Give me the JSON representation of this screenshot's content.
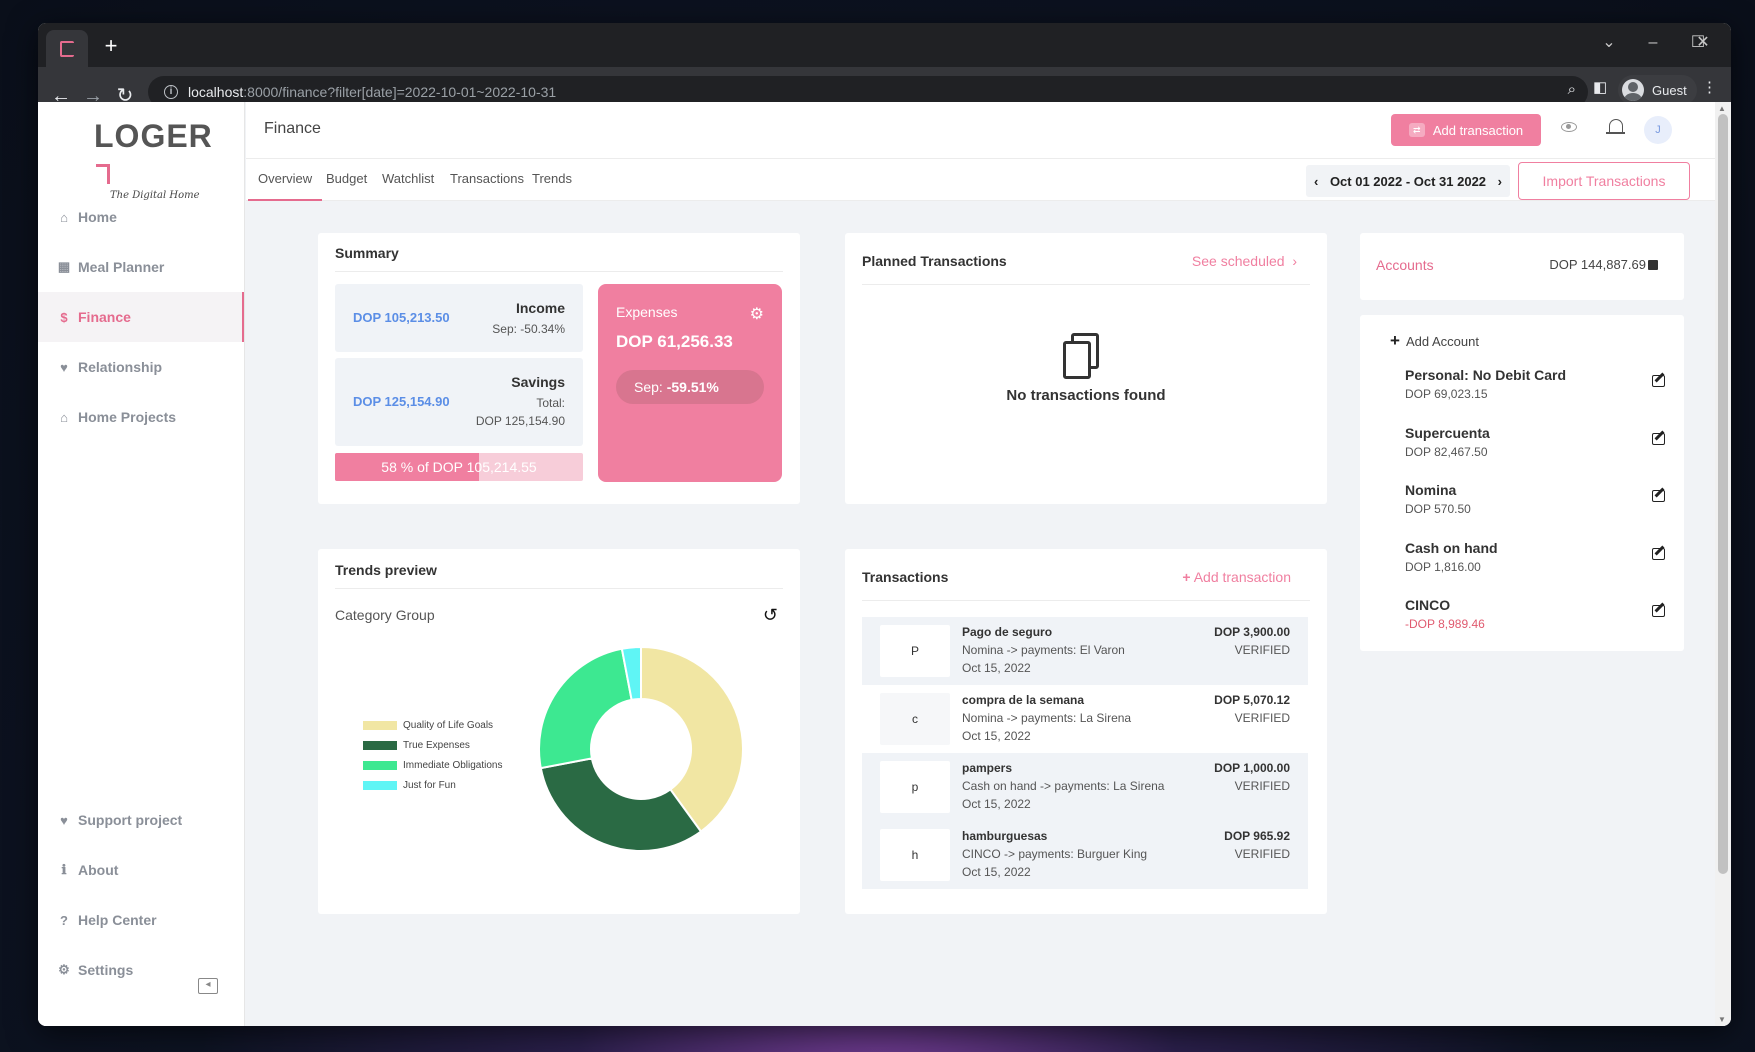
{
  "browser": {
    "url_host": "localhost",
    "url_rest": ":8000/finance?filter[date]=2022-10-01~2022-10-31",
    "profile": "Guest"
  },
  "app": {
    "logo": "LOGER",
    "logo_sub": "The Digital Home",
    "page_title": "Finance",
    "add_transaction_label": "Add transaction",
    "user_initial": "J"
  },
  "sidebar": {
    "items": [
      {
        "label": "Home",
        "icon": "home-icon"
      },
      {
        "label": "Meal Planner",
        "icon": "calendar-icon"
      },
      {
        "label": "Finance",
        "icon": "dollar-icon"
      },
      {
        "label": "Relationship",
        "icon": "heart-icon"
      },
      {
        "label": "Home Projects",
        "icon": "home-icon"
      }
    ],
    "bottom": [
      {
        "label": "Support project",
        "icon": "heart-icon"
      },
      {
        "label": "About",
        "icon": "info-icon"
      },
      {
        "label": "Help Center",
        "icon": "question-icon"
      },
      {
        "label": "Settings",
        "icon": "gears-icon"
      }
    ]
  },
  "tabs": [
    "Overview",
    "Budget",
    "Watchlist",
    "Transactions",
    "Trends"
  ],
  "date_range": "Oct 01 2022 - Oct 31 2022",
  "import_label": "Import Transactions",
  "summary": {
    "title": "Summary",
    "income_value": "DOP 105,213.50",
    "income_label": "Income",
    "income_sub": "Sep: -50.34%",
    "savings_value": "DOP 125,154.90",
    "savings_label": "Savings",
    "savings_total_label": "Total:",
    "savings_total": "DOP 125,154.90",
    "progress_text": "58 % of DOP 105,214.55",
    "progress_percent": 58,
    "expenses_label": "Expenses",
    "expenses_value": "DOP 61,256.33",
    "expenses_sep_label": "Sep: ",
    "expenses_sep_value": "-59.51%"
  },
  "planned": {
    "title": "Planned Transactions",
    "see_scheduled": "See scheduled",
    "empty": "No transactions found"
  },
  "accounts": {
    "title": "Accounts",
    "total": "DOP 144,887.69",
    "add_label": "Add Account",
    "items": [
      {
        "name": "Personal: No Debit Card",
        "balance": "DOP 69,023.15",
        "negative": false
      },
      {
        "name": "Supercuenta",
        "balance": "DOP 82,467.50",
        "negative": false
      },
      {
        "name": "Nomina",
        "balance": "DOP 570.50",
        "negative": false
      },
      {
        "name": "Cash on hand",
        "balance": "DOP 1,816.00",
        "negative": false
      },
      {
        "name": "CINCO",
        "balance": "-DOP 8,989.46",
        "negative": true
      }
    ]
  },
  "trends": {
    "title": "Trends preview",
    "subtitle": "Category Group"
  },
  "chart_data": {
    "type": "pie",
    "donut": true,
    "categories": [
      "Quality of Life Goals",
      "True Expenses",
      "Immediate Obligations",
      "Just for Fun"
    ],
    "values": [
      40,
      32,
      25,
      3
    ],
    "colors": [
      "#f1e6a3",
      "#2a6a44",
      "#3de891",
      "#5ff5f5"
    ],
    "legend_position": "left"
  },
  "transactions": {
    "title": "Transactions",
    "add_label": "Add transaction",
    "items": [
      {
        "letter": "P",
        "title": "Pago de seguro",
        "desc": "Nomina -> payments: El Varon",
        "date": "Oct 15, 2022",
        "amount": "DOP 3,900.00",
        "status": "VERIFIED"
      },
      {
        "letter": "c",
        "title": "compra de la semana",
        "desc": "Nomina -> payments: La Sirena",
        "date": "Oct 15, 2022",
        "amount": "DOP 5,070.12",
        "status": "VERIFIED"
      },
      {
        "letter": "p",
        "title": "pampers",
        "desc": "Cash on hand -> payments: La Sirena",
        "date": "Oct 15, 2022",
        "amount": "DOP 1,000.00",
        "status": "VERIFIED"
      },
      {
        "letter": "h",
        "title": "hamburguesas",
        "desc": "CINCO -> payments: Burguer King",
        "date": "Oct 15, 2022",
        "amount": "DOP 965.92",
        "status": "VERIFIED"
      }
    ]
  }
}
